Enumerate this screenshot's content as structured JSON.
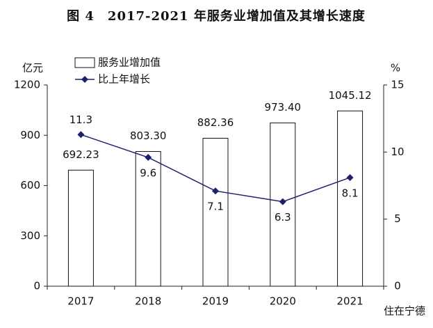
{
  "chart_data": {
    "type": "bar",
    "title": "图 4　2017-2021 年服务业增加值及其增长速度",
    "y_label": "亿元",
    "y2_label": "%",
    "categories": [
      "2017",
      "2018",
      "2019",
      "2020",
      "2021"
    ],
    "series": [
      {
        "name": "服务业增加值",
        "color": "#ffffff",
        "values": [
          692.23,
          803.3,
          882.36,
          973.4,
          1045.12
        ],
        "value_labels": [
          "692.23",
          "803.30",
          "882.36",
          "973.40",
          "1045.12"
        ]
      },
      {
        "name": "比上年增长",
        "type": "line",
        "axis": "y2",
        "color": "#1f1f6b",
        "values": [
          11.3,
          9.6,
          7.1,
          6.3,
          8.1
        ]
      }
    ],
    "ylim": [
      0,
      1200
    ],
    "yticks": [
      0,
      300,
      600,
      900,
      1200
    ],
    "y2lim": [
      0,
      15
    ],
    "y2ticks": [
      0,
      5,
      10,
      15
    ],
    "grid": false,
    "watermark": "住在宁德"
  }
}
